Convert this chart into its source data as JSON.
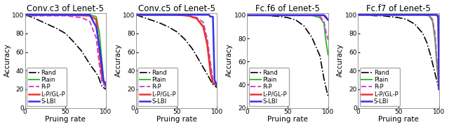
{
  "titles": [
    "Conv.c3 of Lenet-5",
    "Conv.c5 of Lenet-5",
    "Fc.f6 of Lenet-5",
    "Fc.f7 of Lenet-5"
  ],
  "xlabel": "Pruing rate",
  "ylabel": "Accuracy",
  "legend_labels": [
    "Rand",
    "Plain",
    "R-P",
    "L-P/GL-P",
    "S-LBI"
  ],
  "colors": {
    "Rand": "#000000",
    "Plain": "#33bb33",
    "R-P": "#cc44cc",
    "L-P/GL-P": "#ee3333",
    "S-LBI": "#3333ee"
  },
  "linestyles": {
    "Rand": "-.",
    "Plain": "-",
    "R-P": "--",
    "L-P/GL-P": "-",
    "S-LBI": "-"
  },
  "linewidths": {
    "Rand": 1.2,
    "Plain": 1.4,
    "R-P": 1.4,
    "L-P/GL-P": 1.8,
    "S-LBI": 1.8
  },
  "panels": {
    "Conv.c3": {
      "ylim": [
        0,
        102
      ],
      "yticks": [
        0,
        20,
        40,
        60,
        80,
        100
      ],
      "xticks": [
        0,
        50,
        100
      ],
      "curves": {
        "Rand": [
          [
            0,
            10,
            20,
            30,
            40,
            50,
            60,
            70,
            80,
            90,
            95,
            100
          ],
          [
            100,
            97,
            93,
            89,
            85,
            80,
            71,
            61,
            47,
            35,
            23,
            20
          ]
        ],
        "Plain": [
          [
            0,
            50,
            70,
            80,
            88,
            92,
            95,
            97,
            100
          ],
          [
            100,
            100,
            100,
            100,
            98,
            80,
            50,
            30,
            22
          ]
        ],
        "R-P": [
          [
            0,
            30,
            50,
            70,
            80,
            88,
            92,
            95,
            100
          ],
          [
            99,
            99,
            99,
            97,
            93,
            75,
            45,
            28,
            22
          ]
        ],
        "L-P/GL-P": [
          [
            0,
            50,
            80,
            88,
            92,
            95,
            97,
            100
          ],
          [
            100,
            100,
            99,
            95,
            60,
            35,
            29,
            27
          ]
        ],
        "S-LBI": [
          [
            0,
            50,
            80,
            88,
            92,
            95,
            97,
            100
          ],
          [
            100,
            100,
            100,
            87,
            65,
            45,
            28,
            25
          ]
        ]
      }
    },
    "Conv.c5": {
      "ylim": [
        0,
        102
      ],
      "yticks": [
        0,
        20,
        40,
        60,
        80,
        100
      ],
      "xticks": [
        0,
        50,
        100
      ],
      "curves": {
        "Rand": [
          [
            0,
            10,
            20,
            30,
            40,
            50,
            60,
            70,
            80,
            90,
            95,
            100
          ],
          [
            100,
            97,
            94,
            91,
            87,
            82,
            74,
            63,
            48,
            33,
            25,
            22
          ]
        ],
        "Plain": [
          [
            0,
            50,
            65,
            75,
            83,
            88,
            92,
            95,
            100
          ],
          [
            100,
            100,
            99,
            96,
            88,
            68,
            42,
            26,
            24
          ]
        ],
        "R-P": [
          [
            0,
            50,
            65,
            75,
            83,
            88,
            92,
            95,
            100
          ],
          [
            100,
            100,
            99,
            97,
            92,
            74,
            48,
            30,
            24
          ]
        ],
        "L-P/GL-P": [
          [
            0,
            50,
            65,
            75,
            83,
            88,
            92,
            95,
            100
          ],
          [
            100,
            100,
            99,
            96,
            87,
            68,
            38,
            27,
            24
          ]
        ],
        "S-LBI": [
          [
            0,
            50,
            75,
            85,
            90,
            92,
            95,
            97,
            100
          ],
          [
            100,
            100,
            100,
            100,
            100,
            98,
            98,
            30,
            24
          ]
        ]
      }
    },
    "Fc.f6": {
      "ylim": [
        20,
        102
      ],
      "yticks": [
        20,
        40,
        60,
        80,
        100
      ],
      "xticks": [
        0,
        50,
        100
      ],
      "curves": {
        "Rand": [
          [
            0,
            20,
            40,
            50,
            60,
            70,
            80,
            90,
            95,
            100
          ],
          [
            100,
            100,
            99,
            98,
            96,
            91,
            81,
            65,
            45,
            30
          ]
        ],
        "Plain": [
          [
            0,
            50,
            70,
            80,
            90,
            95,
            97,
            100
          ],
          [
            100,
            100,
            100,
            100,
            98,
            93,
            80,
            66
          ]
        ],
        "R-P": [
          [
            0,
            50,
            70,
            80,
            90,
            95,
            97,
            100
          ],
          [
            100,
            100,
            100,
            100,
            99,
            95,
            87,
            79
          ]
        ],
        "L-P/GL-P": [
          [
            0,
            50,
            80,
            90,
            93,
            95,
            97,
            100
          ],
          [
            100,
            100,
            100,
            100,
            100,
            100,
            98,
            96
          ]
        ],
        "S-LBI": [
          [
            0,
            50,
            80,
            90,
            93,
            95,
            97,
            100
          ],
          [
            100,
            100,
            100,
            100,
            100,
            100,
            99,
            96
          ]
        ]
      }
    },
    "Fc.f7": {
      "ylim": [
        0,
        102
      ],
      "yticks": [
        0,
        20,
        40,
        60,
        80,
        100
      ],
      "xticks": [
        0,
        50,
        100
      ],
      "curves": {
        "Rand": [
          [
            0,
            10,
            20,
            30,
            40,
            50,
            60,
            70,
            80,
            85,
            90,
            95,
            100
          ],
          [
            100,
            100,
            99,
            99,
            98,
            97,
            95,
            90,
            80,
            70,
            55,
            37,
            20
          ]
        ],
        "Plain": [
          [
            0,
            50,
            80,
            88,
            92,
            95,
            97,
            100
          ],
          [
            100,
            100,
            100,
            99,
            93,
            74,
            50,
            20
          ]
        ],
        "R-P": [
          [
            0,
            50,
            80,
            88,
            92,
            95,
            97,
            100
          ],
          [
            100,
            100,
            100,
            99,
            95,
            80,
            55,
            20
          ]
        ],
        "L-P/GL-P": [
          [
            0,
            50,
            80,
            90,
            93,
            95,
            97,
            99,
            100
          ],
          [
            100,
            100,
            100,
            100,
            100,
            100,
            100,
            97,
            20
          ]
        ],
        "S-LBI": [
          [
            0,
            50,
            80,
            90,
            93,
            95,
            97,
            99,
            100
          ],
          [
            100,
            100,
            100,
            100,
            100,
            100,
            100,
            99,
            20
          ]
        ]
      }
    }
  },
  "background_color": "#ffffff",
  "title_fontsize": 8.5,
  "label_fontsize": 7.5,
  "tick_fontsize": 6.5,
  "legend_fontsize": 6.0
}
